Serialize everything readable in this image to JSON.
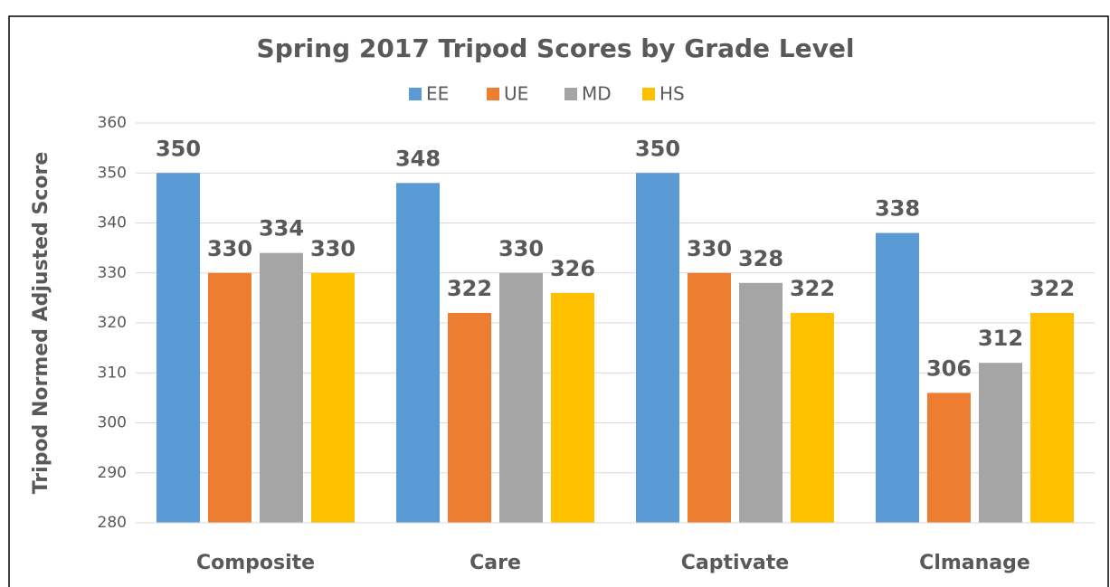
{
  "chart_data": {
    "type": "bar",
    "title": "Spring 2017 Tripod Scores by Grade Level",
    "y_label": "Tripod Normed Adjusted Score",
    "categories": [
      "Composite",
      "Care",
      "Captivate",
      "Clmanage"
    ],
    "series": [
      {
        "name": "EE",
        "color": "#5b9bd5",
        "values": [
          350,
          348,
          350,
          338
        ]
      },
      {
        "name": "UE",
        "color": "#ed7d31",
        "values": [
          330,
          322,
          330,
          306
        ]
      },
      {
        "name": "MD",
        "color": "#a5a5a5",
        "values": [
          334,
          330,
          328,
          312
        ]
      },
      {
        "name": "HS",
        "color": "#ffc000",
        "values": [
          330,
          326,
          322,
          322
        ]
      }
    ],
    "ylim": [
      280,
      360
    ],
    "yticks": [
      280,
      290,
      300,
      310,
      320,
      330,
      340,
      350,
      360
    ],
    "grid": true,
    "legend": "top"
  }
}
